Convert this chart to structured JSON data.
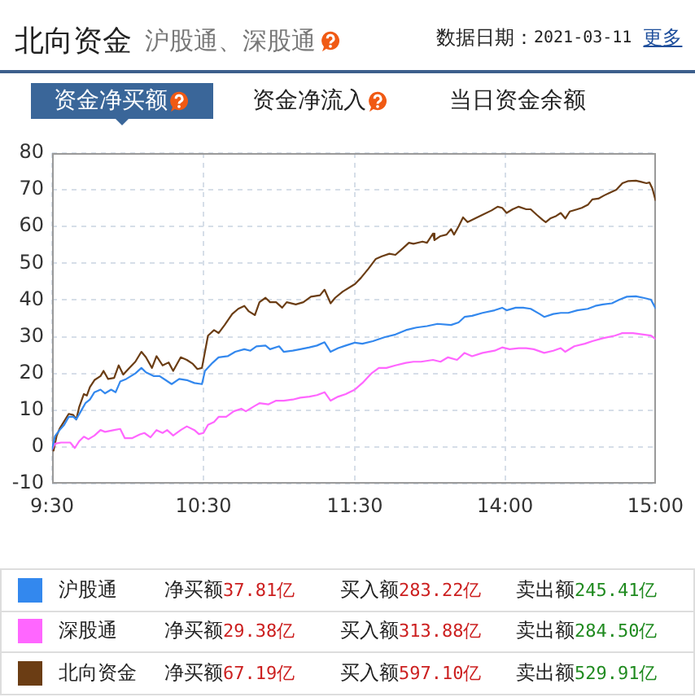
{
  "chart_data": [
    {
      "type": "line",
      "title": "北向资金",
      "subtitle": "沪股通、深股通",
      "annotations": [
        "数据日期：2021-03-11",
        "更多",
        "资金净买额",
        "资金净流入",
        "当日资金余额",
        "净买额37.81亿",
        "买入额283.22亿",
        "卖出额245.41亿",
        "净买额29.38亿",
        "买入额313.88亿",
        "卖出额284.50亿",
        "净买额67.19亿",
        "买入额597.10亿",
        "卖出额529.91亿"
      ],
      "xlim": [
        9.5,
        11.5
      ],
      "xticks": [
        {
          "value": 9.5,
          "label": "9:30"
        },
        {
          "value": 10.5,
          "label": "10:30"
        },
        {
          "value": 11.5,
          "label": "11:30"
        }
      ],
      "ylim": [
        -10,
        80
      ],
      "yticks": [
        -10,
        0,
        10,
        20,
        30,
        40,
        50,
        60,
        70,
        80
      ],
      "grid": true,
      "legend": "bottom",
      "marker": "none",
      "line_style": "solid",
      "series": [
        {
          "name": "沪股通",
          "color": "#3388ee",
          "x": [
            9.5,
            9.52,
            9.55,
            9.58,
            9.61,
            9.64,
            9.66,
            9.69,
            9.72,
            9.75,
            9.78,
            9.82,
            9.85,
            9.89,
            9.92,
            9.95,
            9.99,
            10.05,
            10.09,
            10.12,
            10.17,
            10.21,
            10.25,
            10.29,
            10.34,
            10.39,
            10.44,
            10.49,
            10.51,
            10.56,
            10.6,
            10.66,
            10.71,
            10.77,
            10.81,
            10.85,
            10.91,
            10.94,
            11.0,
            11.03,
            11.09,
            11.14,
            11.2,
            11.25,
            11.3,
            11.34,
            11.39,
            11.44,
            11.5
          ],
          "values": [
            -0.6,
            3.0,
            4.6,
            6.0,
            8.2,
            8.2,
            7.5,
            9.7,
            11.9,
            12.9,
            14.9,
            15.6,
            14.6,
            15.6,
            14.9,
            17.8,
            18.5,
            20.0,
            21.5,
            20.3,
            19.3,
            19.3,
            18.2,
            17.1,
            18.5,
            18.2,
            17.4,
            17.1,
            20.7,
            22.9,
            24.4,
            24.7,
            25.9,
            26.6,
            26.2,
            27.4,
            27.6,
            26.6,
            27.4,
            25.9,
            26.2,
            26.6,
            27.1,
            27.6,
            28.5,
            25.9,
            26.9,
            27.6,
            28.4
          ]
        },
        {
          "name": "深股通",
          "color": "#ff66ff",
          "x": [
            9.5,
            9.52,
            9.56,
            9.62,
            9.65,
            9.68,
            9.71,
            9.74,
            9.78,
            9.82,
            9.85,
            9.91,
            9.95,
            9.98,
            10.03,
            10.08,
            10.11,
            10.15,
            10.19,
            10.23,
            10.26,
            10.3,
            10.35,
            10.39,
            10.44,
            10.47,
            10.5,
            10.53,
            10.57,
            10.6,
            10.65,
            10.7,
            10.75,
            10.78,
            10.84,
            10.87,
            10.93,
            10.98,
            11.03,
            11.09,
            11.14,
            11.2,
            11.25,
            11.3,
            11.34,
            11.39,
            11.44,
            11.5
          ],
          "values": [
            -0.6,
            0.9,
            1.2,
            1.2,
            -0.3,
            1.6,
            2.8,
            2.1,
            3.1,
            4.6,
            4.1,
            4.6,
            4.9,
            2.4,
            2.4,
            3.4,
            3.8,
            2.6,
            4.6,
            3.8,
            4.6,
            3.1,
            4.6,
            5.6,
            4.6,
            3.5,
            3.8,
            6.0,
            6.8,
            8.2,
            8.2,
            9.7,
            10.4,
            9.7,
            11.2,
            11.9,
            11.6,
            12.6,
            12.6,
            12.9,
            13.4,
            13.7,
            14.1,
            14.9,
            12.6,
            13.7,
            14.4,
            15.6
          ]
        },
        {
          "name": "北向资金",
          "color": "#6b3d14",
          "x": [
            9.5,
            9.51,
            9.53,
            9.55,
            9.58,
            9.61,
            9.64,
            9.66,
            9.68,
            9.71,
            9.73,
            9.75,
            9.78,
            9.82,
            9.84,
            9.87,
            9.91,
            9.94,
            9.97,
            10.01,
            10.05,
            10.09,
            10.12,
            10.16,
            10.19,
            10.23,
            10.27,
            10.3,
            10.35,
            10.39,
            10.43,
            10.46,
            10.49,
            10.51,
            10.53,
            10.57,
            10.6,
            10.64,
            10.69,
            10.73,
            10.77,
            10.8,
            10.84,
            10.87,
            10.91,
            10.94,
            10.98,
            11.02,
            11.05,
            11.11,
            11.16,
            11.21,
            11.27,
            11.3,
            11.34,
            11.37,
            11.42,
            11.48,
            11.5
          ],
          "values": [
            -0.5,
            -1.0,
            3.0,
            5.0,
            7.0,
            9.0,
            8.7,
            7.5,
            11.0,
            14.4,
            14.0,
            16.3,
            18.2,
            19.3,
            20.7,
            18.5,
            18.8,
            22.2,
            19.7,
            21.5,
            23.2,
            25.9,
            24.4,
            21.5,
            24.7,
            22.2,
            23.0,
            20.7,
            24.4,
            23.7,
            22.6,
            21.2,
            21.5,
            25.9,
            30.3,
            31.8,
            31.0,
            33.2,
            36.2,
            37.6,
            38.4,
            36.9,
            35.9,
            39.4,
            40.6,
            39.4,
            39.4,
            37.9,
            39.4,
            38.8,
            39.4,
            40.9,
            41.3,
            42.8,
            39.1,
            40.6,
            42.3,
            43.8,
            44.3
          ]
        }
      ]
    },
    {
      "type": "line",
      "tick_labels": "x",
      "xlim": [
        13,
        15
      ],
      "xticks": [
        {
          "value": 14,
          "label": "14:00"
        },
        {
          "value": 15,
          "label": "15:00"
        }
      ],
      "ylim": [
        -10,
        80
      ],
      "yticks": [
        -10,
        0,
        10,
        20,
        30,
        40,
        50,
        60,
        70,
        80
      ],
      "grid": true,
      "marker": "none",
      "line_style": "solid",
      "series": [
        {
          "color": "#3388ee",
          "x": [
            13.0,
            13.05,
            13.12,
            13.2,
            13.27,
            13.34,
            13.41,
            13.48,
            13.55,
            13.64,
            13.69,
            13.73,
            13.78,
            13.85,
            13.93,
            13.98,
            14.01,
            14.07,
            14.12,
            14.17,
            14.23,
            14.26,
            14.32,
            14.37,
            14.42,
            14.48,
            14.55,
            14.6,
            14.65,
            14.71,
            14.76,
            14.81,
            14.87,
            14.92,
            14.97,
            15.0
          ],
          "values": [
            28.4,
            28.1,
            28.8,
            29.9,
            30.6,
            31.8,
            32.5,
            32.9,
            33.5,
            33.2,
            33.9,
            35.4,
            35.7,
            36.5,
            37.2,
            37.9,
            37.2,
            37.9,
            37.9,
            37.6,
            36.2,
            35.4,
            36.2,
            36.5,
            36.5,
            37.2,
            37.6,
            38.4,
            38.8,
            39.1,
            40.1,
            40.9,
            41.0,
            40.6,
            40.1,
            37.8
          ]
        },
        {
          "color": "#ff66ff",
          "x": [
            13.0,
            13.05,
            13.11,
            13.16,
            13.21,
            13.27,
            13.34,
            13.39,
            13.44,
            13.52,
            13.57,
            13.62,
            13.68,
            13.73,
            13.78,
            13.85,
            13.93,
            13.98,
            14.03,
            14.09,
            14.14,
            14.19,
            14.26,
            14.32,
            14.37,
            14.4,
            14.46,
            14.53,
            14.58,
            14.65,
            14.73,
            14.78,
            14.85,
            14.92,
            14.97,
            15.0
          ],
          "values": [
            15.6,
            17.4,
            20.0,
            21.5,
            21.5,
            22.2,
            22.9,
            23.2,
            23.2,
            23.7,
            23.2,
            24.4,
            23.7,
            25.6,
            24.7,
            25.6,
            26.2,
            27.1,
            26.6,
            26.9,
            26.9,
            26.6,
            25.6,
            26.2,
            26.9,
            25.9,
            27.4,
            28.1,
            28.8,
            29.6,
            30.3,
            31.0,
            31.0,
            30.6,
            30.3,
            29.4
          ]
        },
        {
          "color": "#6b3d14",
          "x": [
            13.0,
            13.04,
            13.09,
            13.14,
            13.18,
            13.23,
            13.27,
            13.32,
            13.36,
            13.39,
            13.45,
            13.48,
            13.52,
            13.53,
            13.57,
            13.61,
            13.64,
            13.66,
            13.69,
            13.72,
            13.75,
            13.8,
            13.85,
            13.91,
            13.95,
            13.98,
            14.01,
            14.05,
            14.09,
            14.14,
            14.17,
            14.21,
            14.25,
            14.27,
            14.3,
            14.34,
            14.37,
            14.4,
            14.43,
            14.48,
            14.51,
            14.55,
            14.58,
            14.62,
            14.66,
            14.69,
            14.74,
            14.78,
            14.82,
            14.87,
            14.9,
            14.94,
            14.96,
            14.98,
            15.0
          ],
          "values": [
            44.3,
            46.0,
            48.5,
            51.2,
            51.9,
            52.6,
            52.3,
            54.1,
            55.6,
            55.3,
            55.9,
            55.6,
            58.1,
            56.3,
            57.4,
            57.8,
            59.3,
            57.8,
            60.0,
            62.5,
            61.2,
            62.2,
            63.2,
            64.4,
            65.4,
            65.1,
            63.7,
            64.7,
            65.4,
            64.7,
            64.7,
            63.2,
            61.8,
            61.2,
            62.2,
            62.9,
            63.7,
            62.2,
            64.1,
            64.7,
            65.1,
            65.9,
            67.4,
            67.6,
            68.5,
            69.1,
            70.0,
            71.8,
            72.4,
            72.5,
            72.2,
            71.8,
            72.0,
            70.3,
            67.2
          ]
        }
      ]
    }
  ]
}
